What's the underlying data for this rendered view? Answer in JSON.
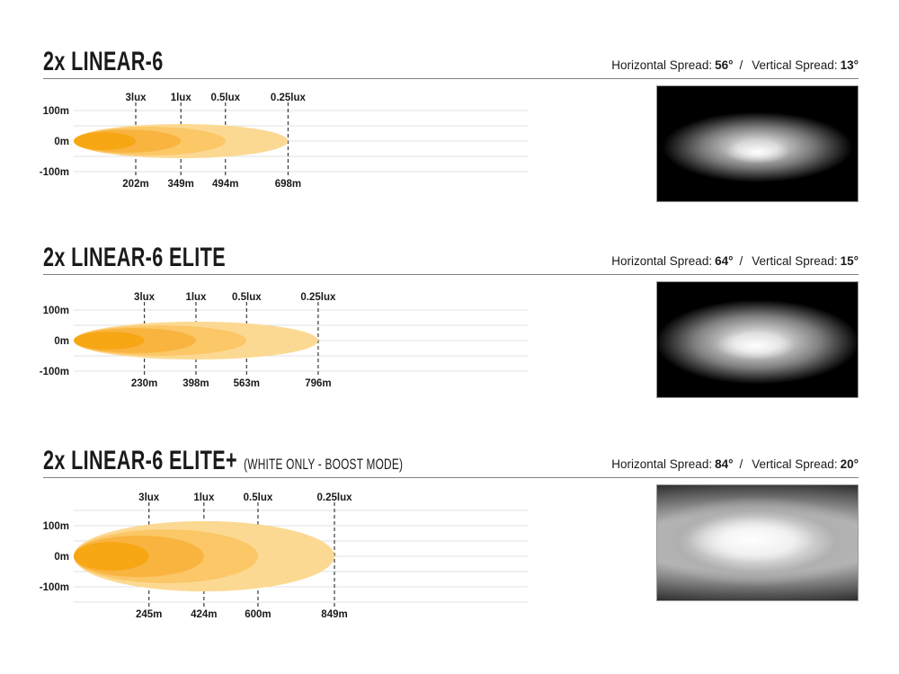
{
  "page": {
    "background": "#ffffff",
    "text_color": "#1a1a1a",
    "rule_color": "#808080",
    "grid_color": "#e2e2e2",
    "dash_color": "#3a3a3a"
  },
  "sections": [
    {
      "title": "2x LINEAR-6",
      "title_suffix": "",
      "spread": {
        "h_label": "Horizontal Spread:",
        "h_value": "56°",
        "separator": "/",
        "v_label": "Vertical Spread:",
        "v_value": "13°"
      }
    },
    {
      "title": "2x LINEAR-6 ELITE",
      "title_suffix": "",
      "spread": {
        "h_label": "Horizontal Spread:",
        "h_value": "64°",
        "separator": "/",
        "v_label": "Vertical Spread:",
        "v_value": "15°"
      }
    },
    {
      "title": "2x LINEAR-6 ELITE+",
      "title_suffix": "(WHITE ONLY - BOOST MODE)",
      "spread": {
        "h_label": "Horizontal Spread:",
        "h_value": "84°",
        "separator": "/",
        "v_label": "Vertical Spread:",
        "v_value": "20°"
      }
    }
  ],
  "chart_data": [
    {
      "type": "area",
      "x_unit": "m",
      "y_unit": "m",
      "y_gridlines_m": [
        100,
        50,
        0,
        -50,
        -100
      ],
      "y_ticks": [
        {
          "m": 100,
          "label": "100m"
        },
        {
          "m": 0,
          "label": "0m"
        },
        {
          "m": -100,
          "label": "-100m"
        }
      ],
      "series": [
        {
          "lux": "3lux",
          "distance_m": 202,
          "distance_label": "202m",
          "half_height_m": 29,
          "color": "#f7a614"
        },
        {
          "lux": "1lux",
          "distance_m": 349,
          "distance_label": "349m",
          "half_height_m": 38,
          "color": "#f9b440"
        },
        {
          "lux": "0.5lux",
          "distance_m": 494,
          "distance_label": "494m",
          "half_height_m": 47,
          "color": "#fbc767"
        },
        {
          "lux": "0.25lux",
          "distance_m": 698,
          "distance_label": "698m",
          "half_height_m": 56,
          "color": "#fcd992"
        }
      ]
    },
    {
      "type": "area",
      "x_unit": "m",
      "y_unit": "m",
      "y_gridlines_m": [
        100,
        50,
        0,
        -50,
        -100
      ],
      "y_ticks": [
        {
          "m": 100,
          "label": "100m"
        },
        {
          "m": 0,
          "label": "0m"
        },
        {
          "m": -100,
          "label": "-100m"
        }
      ],
      "series": [
        {
          "lux": "3lux",
          "distance_m": 230,
          "distance_label": "230m",
          "half_height_m": 29,
          "color": "#f7a614"
        },
        {
          "lux": "1lux",
          "distance_m": 398,
          "distance_label": "398m",
          "half_height_m": 41,
          "color": "#f9b440"
        },
        {
          "lux": "0.5lux",
          "distance_m": 563,
          "distance_label": "563m",
          "half_height_m": 50,
          "color": "#fbc767"
        },
        {
          "lux": "0.25lux",
          "distance_m": 796,
          "distance_label": "796m",
          "half_height_m": 62,
          "color": "#fcd992"
        }
      ]
    },
    {
      "type": "area",
      "x_unit": "m",
      "y_unit": "m",
      "y_gridlines_m": [
        150,
        100,
        50,
        0,
        -50,
        -100,
        -150
      ],
      "y_ticks": [
        {
          "m": 100,
          "label": "100m"
        },
        {
          "m": 0,
          "label": "0m"
        },
        {
          "m": -100,
          "label": "-100m"
        }
      ],
      "series": [
        {
          "lux": "3lux",
          "distance_m": 245,
          "distance_label": "245m",
          "half_height_m": 47,
          "color": "#f7a614"
        },
        {
          "lux": "1lux",
          "distance_m": 424,
          "distance_label": "424m",
          "half_height_m": 68,
          "color": "#f9b440"
        },
        {
          "lux": "0.5lux",
          "distance_m": 600,
          "distance_label": "600m",
          "half_height_m": 88,
          "color": "#fbc767"
        },
        {
          "lux": "0.25lux",
          "distance_m": 849,
          "distance_label": "849m",
          "half_height_m": 115,
          "color": "#fcd992"
        }
      ]
    }
  ]
}
